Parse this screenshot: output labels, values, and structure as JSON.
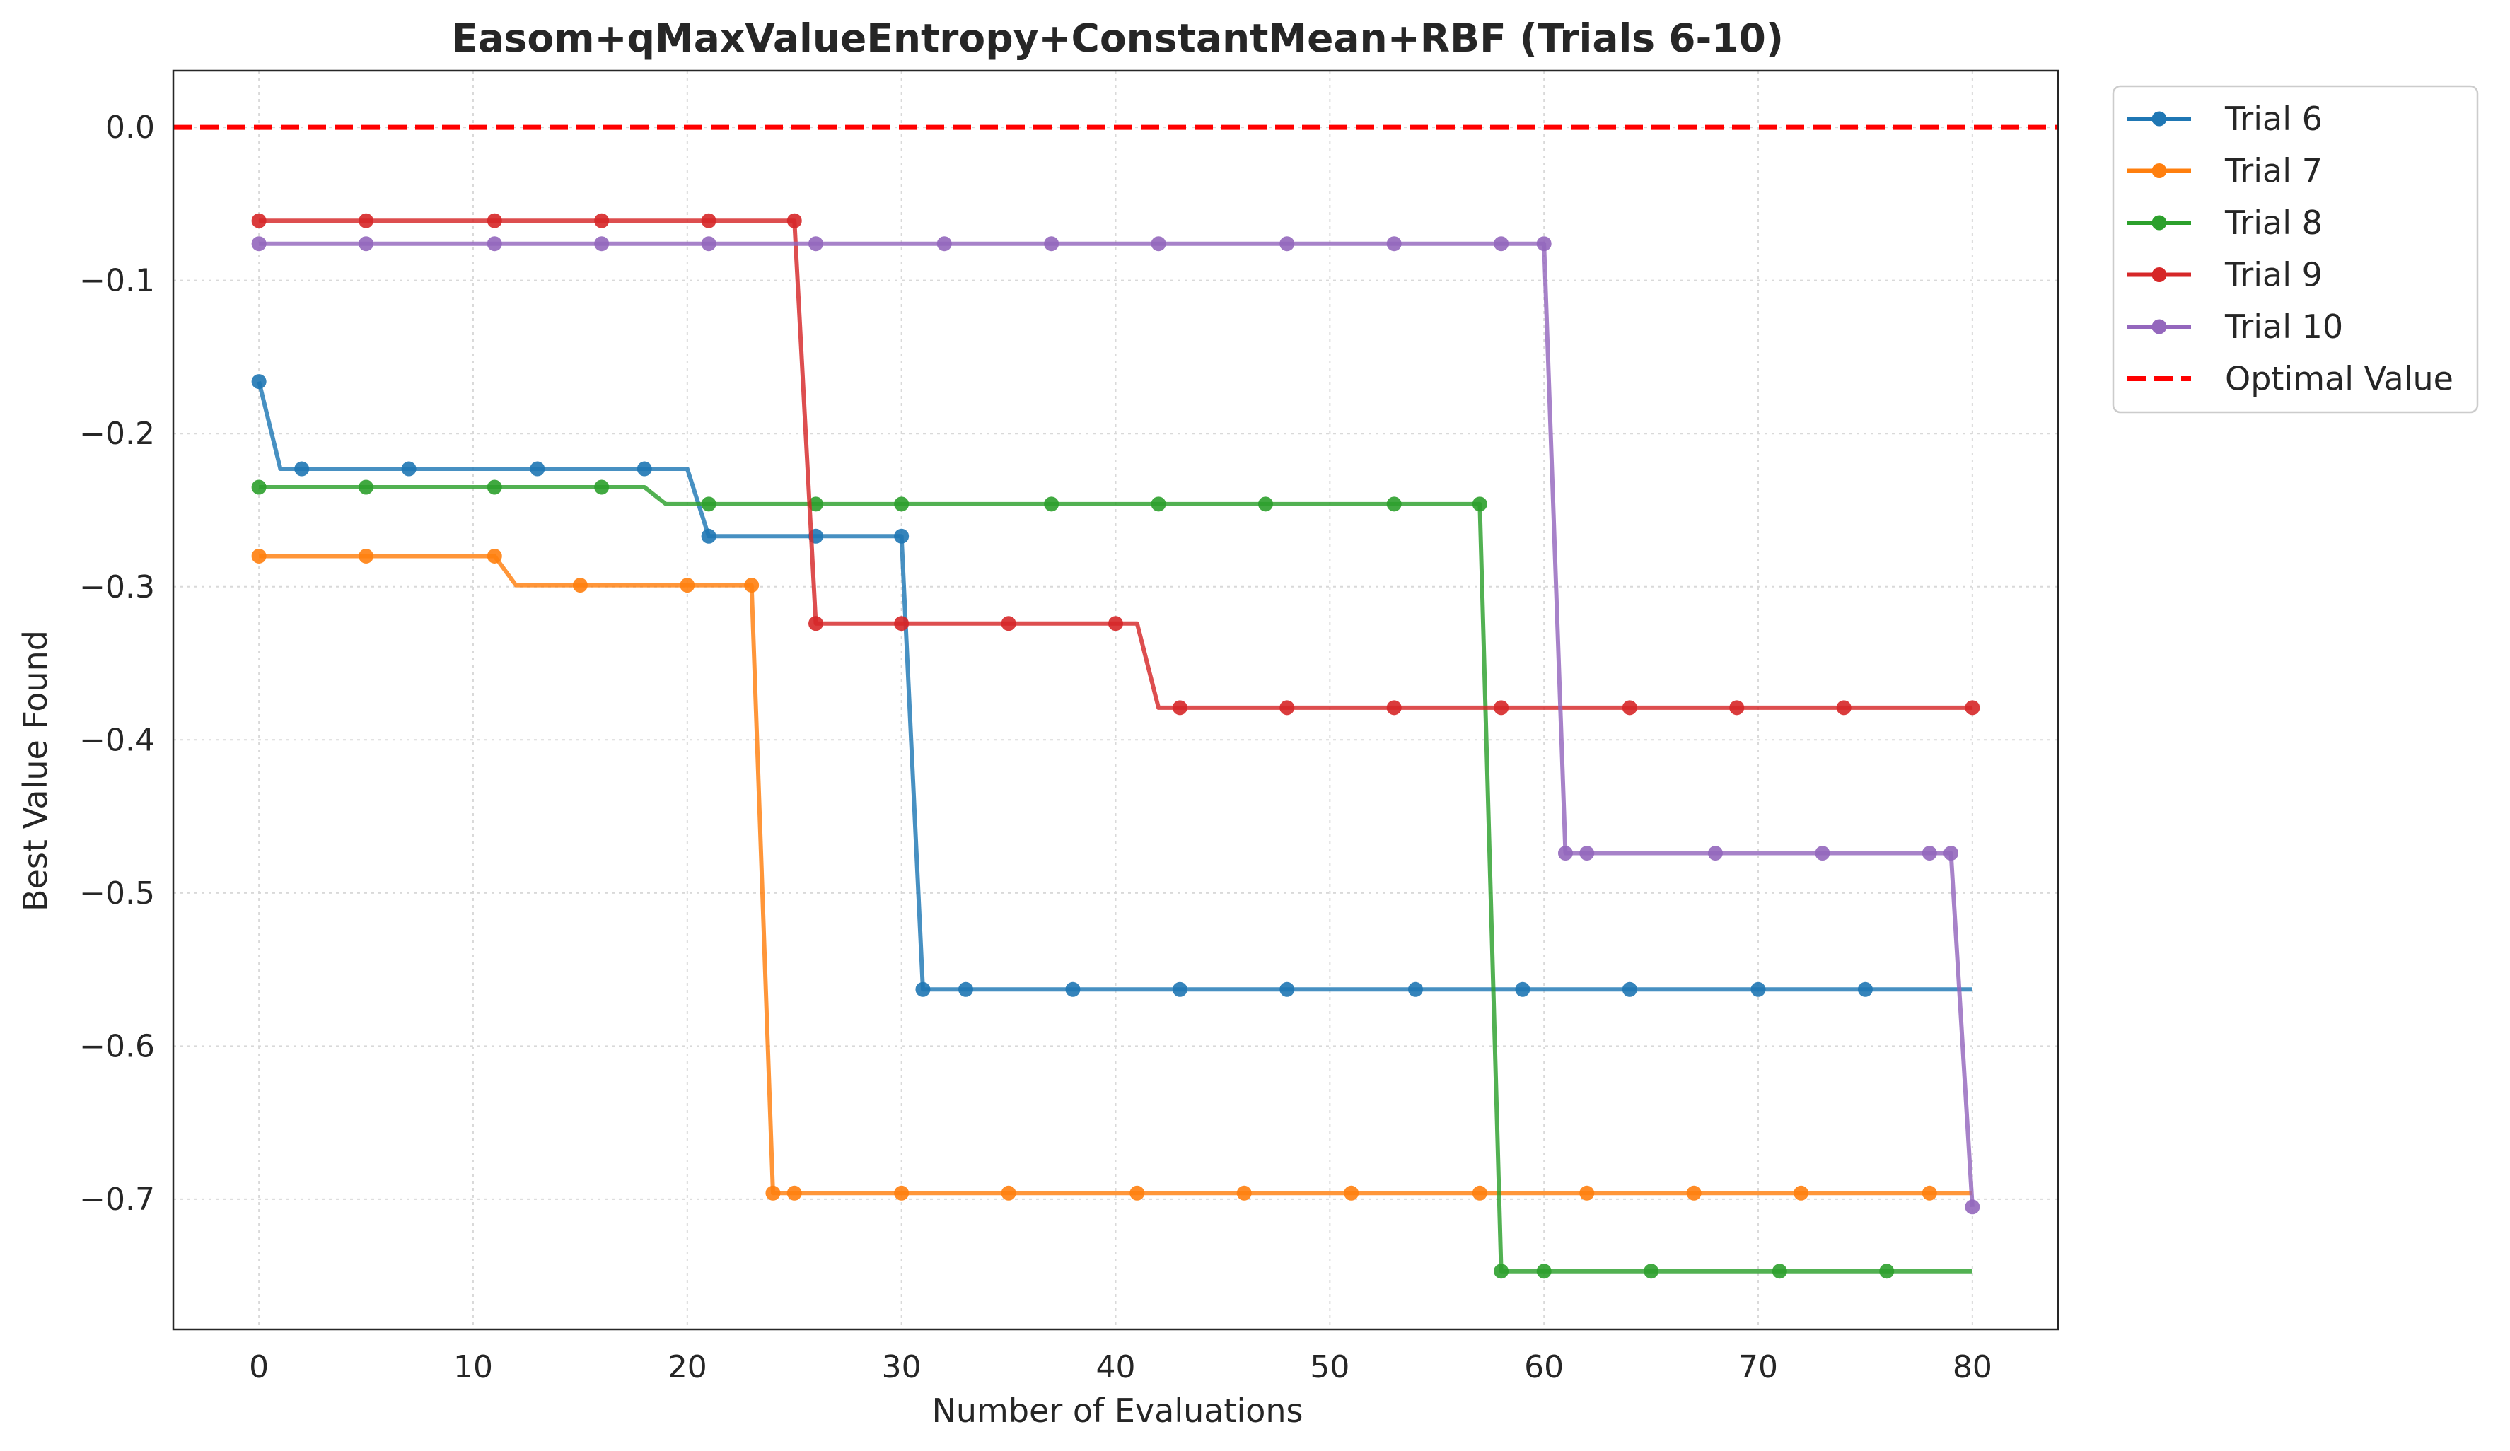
{
  "chart_data": {
    "type": "line",
    "title": "Easom+qMaxValueEntropy+ConstantMean+RBF (Trials 6-10)",
    "xlabel": "Number of Evaluations",
    "ylabel": "Best Value Found",
    "xlim": [
      -4,
      84
    ],
    "ylim": [
      -0.785,
      0.037
    ],
    "xticks": [
      0,
      10,
      20,
      30,
      40,
      50,
      60,
      70,
      80
    ],
    "yticks": [
      0.0,
      -0.1,
      -0.2,
      -0.3,
      -0.4,
      -0.5,
      -0.6,
      -0.7
    ],
    "ytick_labels": [
      "0.0",
      "−0.1",
      "−0.2",
      "−0.3",
      "−0.4",
      "−0.5",
      "−0.6",
      "−0.7"
    ],
    "xtick_labels": [
      "0",
      "10",
      "20",
      "30",
      "40",
      "50",
      "60",
      "70",
      "80"
    ],
    "grid": true,
    "legend_position": "outside-top-right",
    "series": [
      {
        "name": "Trial 6",
        "color": "#1f77b4",
        "breakpoints": [
          [
            0,
            -0.166
          ],
          [
            1,
            -0.223
          ],
          [
            20,
            -0.223
          ],
          [
            21,
            -0.267
          ],
          [
            30,
            -0.267
          ],
          [
            31,
            -0.563
          ],
          [
            80,
            -0.563
          ]
        ],
        "markers": [
          0,
          2,
          7,
          13,
          18,
          21,
          26,
          30,
          31,
          33,
          38,
          43,
          48,
          54,
          59,
          64,
          70,
          75
        ]
      },
      {
        "name": "Trial 7",
        "color": "#ff7f0e",
        "breakpoints": [
          [
            0,
            -0.28
          ],
          [
            11,
            -0.28
          ],
          [
            12,
            -0.299
          ],
          [
            23,
            -0.299
          ],
          [
            24,
            -0.696
          ],
          [
            80,
            -0.696
          ]
        ],
        "markers": [
          0,
          5,
          11,
          15,
          20,
          23,
          24,
          25,
          30,
          35,
          41,
          46,
          51,
          57,
          62,
          67,
          72,
          78
        ]
      },
      {
        "name": "Trial 8",
        "color": "#2ca02c",
        "breakpoints": [
          [
            0,
            -0.235
          ],
          [
            18,
            -0.235
          ],
          [
            19,
            -0.246
          ],
          [
            57,
            -0.246
          ],
          [
            58,
            -0.747
          ],
          [
            80,
            -0.747
          ]
        ],
        "markers": [
          0,
          5,
          11,
          16,
          21,
          26,
          30,
          37,
          42,
          47,
          53,
          57,
          58,
          60,
          65,
          71,
          76
        ]
      },
      {
        "name": "Trial 9",
        "color": "#d62728",
        "breakpoints": [
          [
            0,
            -0.061
          ],
          [
            25,
            -0.061
          ],
          [
            26,
            -0.324
          ],
          [
            41,
            -0.324
          ],
          [
            42,
            -0.379
          ],
          [
            80,
            -0.379
          ]
        ],
        "markers": [
          0,
          5,
          11,
          16,
          21,
          25,
          26,
          30,
          35,
          40,
          43,
          48,
          53,
          58,
          64,
          69,
          74,
          80
        ]
      },
      {
        "name": "Trial 10",
        "color": "#9467bd",
        "breakpoints": [
          [
            0,
            -0.076
          ],
          [
            60,
            -0.076
          ],
          [
            61,
            -0.474
          ],
          [
            79,
            -0.474
          ],
          [
            80,
            -0.705
          ]
        ],
        "markers": [
          0,
          5,
          11,
          16,
          21,
          26,
          32,
          37,
          42,
          48,
          53,
          58,
          60,
          61,
          62,
          68,
          73,
          78,
          79,
          80
        ]
      }
    ],
    "reference_line": {
      "name": "Optimal Value",
      "y": 0.0,
      "color": "#ff0000",
      "style": "dashed"
    }
  }
}
